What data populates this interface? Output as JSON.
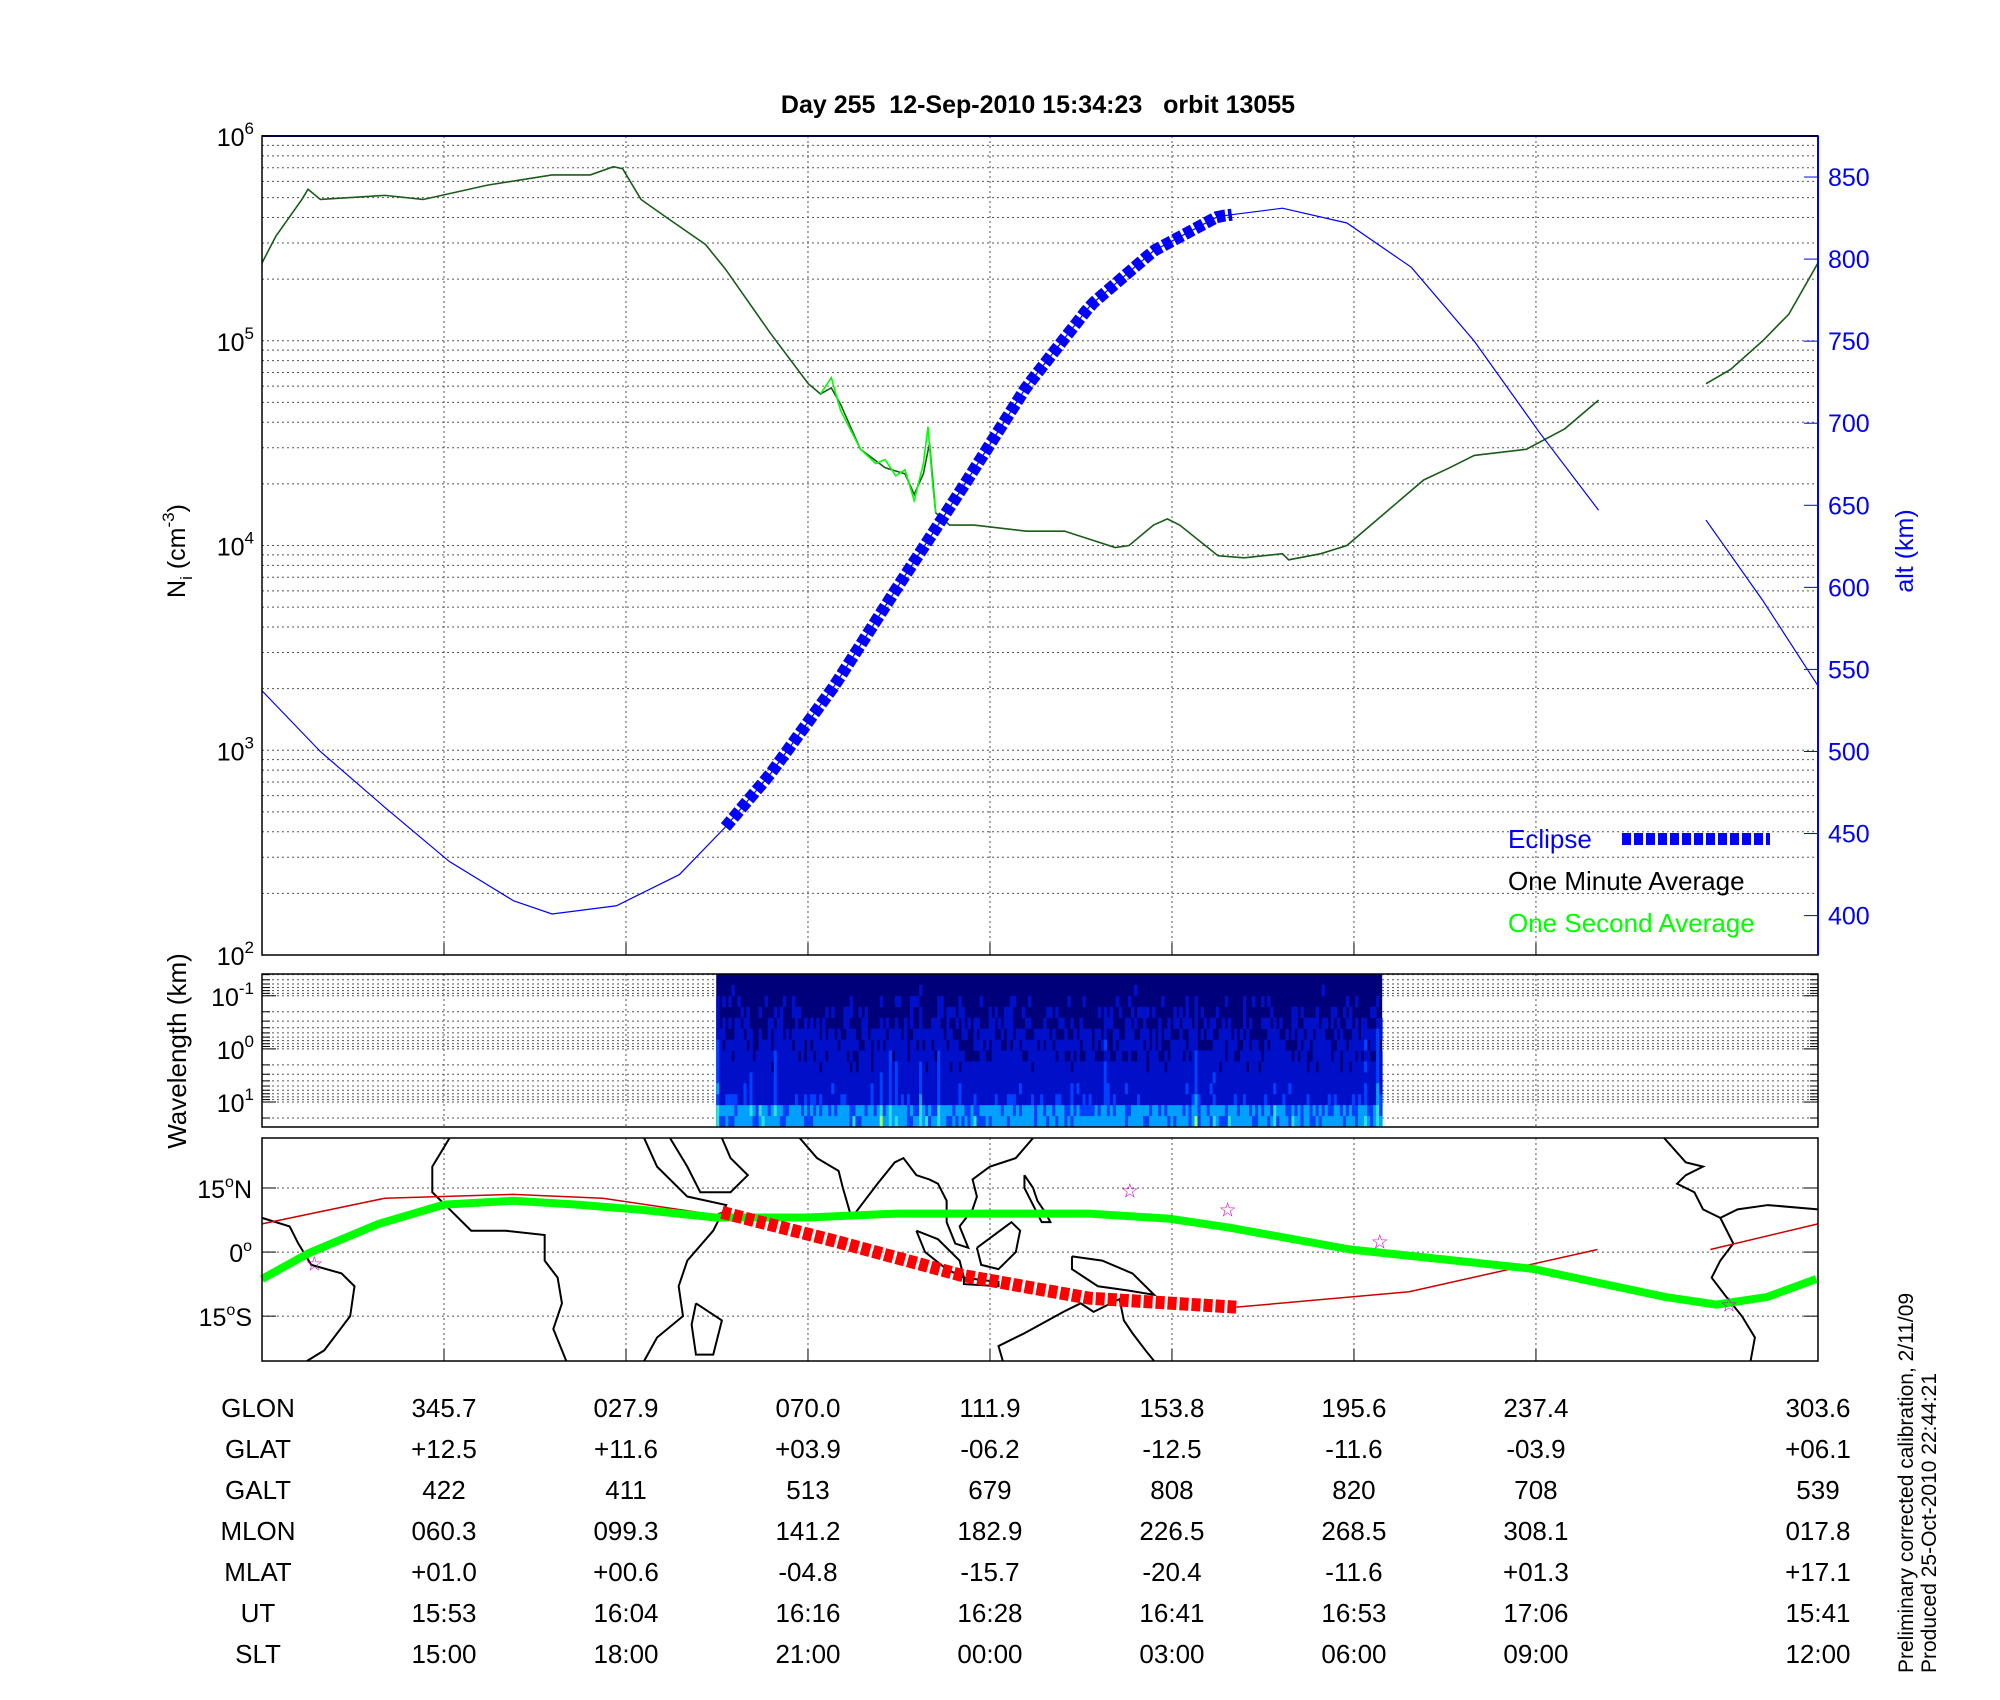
{
  "chart_data": [
    {
      "type": "line",
      "title": "Day 255  12-Sep-2010 15:34:23   orbit 13055",
      "xlabel": "",
      "x_units": "minutes after plot start",
      "xlim": [
        0,
        101.4
      ],
      "ylabel": "N",
      "ylabel_sub": "i",
      "ylabel_units": "(cm",
      "ylabel_exp": "-3",
      "ylabel_close": ")",
      "yscale": "log",
      "ylim": [
        100,
        1000000
      ],
      "yticks": [
        {
          "base": "10",
          "exp": "2",
          "log": 2
        },
        {
          "base": "10",
          "exp": "3",
          "log": 3
        },
        {
          "base": "10",
          "exp": "4",
          "log": 4
        },
        {
          "base": "10",
          "exp": "5",
          "log": 5
        },
        {
          "base": "10",
          "exp": "6",
          "log": 6
        }
      ],
      "y2label": "alt (km)",
      "y2lim": [
        376,
        875
      ],
      "y2ticks": [
        400,
        450,
        500,
        550,
        600,
        650,
        700,
        750,
        800,
        850
      ],
      "grid": true,
      "legend_placement": "bottom-right",
      "legend": [
        {
          "label": "Eclipse",
          "color": "#0000ff"
        },
        {
          "label": "One Minute Average",
          "color": "#000000"
        },
        {
          "label": "One Second Average",
          "color": "#00ff00"
        }
      ],
      "series": [
        {
          "name": "One Minute Average",
          "axis": "left",
          "color": "#1a5c1a",
          "segments": [
            [
              [
                0,
                5.38
              ],
              [
                0.9,
                5.51
              ],
              [
                2.6,
                5.69
              ],
              [
                3.0,
                5.74
              ],
              [
                3.8,
                5.69
              ],
              [
                8.0,
                5.71
              ],
              [
                10.5,
                5.69
              ],
              [
                14.7,
                5.76
              ],
              [
                18.9,
                5.81
              ],
              [
                21.4,
                5.81
              ],
              [
                22.9,
                5.85
              ],
              [
                23.5,
                5.84
              ],
              [
                24.7,
                5.69
              ],
              [
                26.4,
                5.6
              ],
              [
                28.9,
                5.47
              ],
              [
                30.2,
                5.35
              ],
              [
                33.1,
                5.04
              ],
              [
                35.6,
                4.79
              ],
              [
                36.4,
                4.74
              ],
              [
                37.1,
                4.77
              ],
              [
                37.7,
                4.69
              ],
              [
                39.0,
                4.47
              ],
              [
                40.6,
                4.38
              ],
              [
                41.9,
                4.35
              ],
              [
                42.5,
                4.25
              ],
              [
                43.1,
                4.35
              ],
              [
                43.5,
                4.5
              ],
              [
                43.9,
                4.16
              ],
              [
                44.8,
                4.1
              ],
              [
                46.4,
                4.1
              ],
              [
                49.8,
                4.07
              ],
              [
                52.3,
                4.07
              ],
              [
                55.6,
                3.99
              ],
              [
                56.5,
                4.0
              ],
              [
                58.1,
                4.1
              ],
              [
                59.0,
                4.13
              ],
              [
                59.8,
                4.1
              ],
              [
                62.3,
                3.95
              ],
              [
                64.0,
                3.94
              ],
              [
                66.5,
                3.96
              ],
              [
                66.9,
                3.93
              ],
              [
                69.0,
                3.96
              ],
              [
                70.7,
                4.0
              ],
              [
                73.2,
                4.16
              ],
              [
                75.7,
                4.32
              ],
              [
                77.4,
                4.38
              ],
              [
                79.0,
                4.44
              ],
              [
                82.4,
                4.47
              ],
              [
                84.9,
                4.57
              ],
              [
                87.1,
                4.71
              ]
            ],
            [
              [
                94.1,
                4.79
              ],
              [
                95.7,
                4.86
              ],
              [
                97.8,
                5.0
              ],
              [
                99.5,
                5.13
              ],
              [
                101.4,
                5.38
              ]
            ]
          ],
          "y_is_log10": true
        },
        {
          "name": "One Second Average",
          "axis": "left",
          "color": "#00ff00",
          "segments": [
            [
              [
                36.4,
                4.74
              ],
              [
                37.1,
                4.82
              ],
              [
                37.7,
                4.66
              ],
              [
                39.0,
                4.47
              ],
              [
                40.0,
                4.4
              ],
              [
                40.6,
                4.42
              ],
              [
                41.3,
                4.34
              ],
              [
                41.9,
                4.37
              ],
              [
                42.5,
                4.22
              ],
              [
                43.1,
                4.4
              ],
              [
                43.4,
                4.58
              ],
              [
                43.7,
                4.3
              ],
              [
                43.9,
                4.16
              ]
            ]
          ],
          "y_is_log10": true
        },
        {
          "name": "Altitude",
          "axis": "right",
          "color": "#0000ff",
          "segments": [
            [
              [
                0,
                537
              ],
              [
                3.8,
                500
              ],
              [
                8.0,
                466
              ],
              [
                12.2,
                433
              ],
              [
                16.4,
                409
              ],
              [
                18.9,
                401
              ],
              [
                23.1,
                406
              ],
              [
                27.2,
                425
              ],
              [
                30.2,
                454
              ],
              [
                33.1,
                486
              ],
              [
                37.3,
                540
              ],
              [
                41.4,
                600
              ],
              [
                45.6,
                660
              ],
              [
                49.8,
                722
              ],
              [
                54.0,
                772
              ],
              [
                58.1,
                805
              ],
              [
                62.3,
                826
              ],
              [
                66.5,
                831
              ],
              [
                70.7,
                822
              ],
              [
                74.9,
                795
              ],
              [
                79.0,
                750
              ],
              [
                83.2,
                695
              ],
              [
                87.1,
                647
              ]
            ],
            [
              [
                94.1,
                641
              ],
              [
                97.8,
                592
              ],
              [
                101.4,
                540
              ]
            ]
          ]
        }
      ],
      "eclipse": {
        "start": 30.2,
        "end": 63.6,
        "color": "#0000ff"
      }
    },
    {
      "type": "heatmap",
      "ylabel": "Wavelength (km)",
      "yscale": "log",
      "yticks": [
        {
          "base": "10",
          "exp": "-1",
          "log": -1
        },
        {
          "base": "10",
          "exp": "0",
          "log": 0
        },
        {
          "base": "10",
          "exp": "1",
          "log": 1
        }
      ],
      "ylim_log": [
        -1.41,
        1.47
      ],
      "data_xrange": [
        29.6,
        73.0
      ],
      "colormap": [
        "#00007a",
        "#0010c8",
        "#0040ff",
        "#00a0ff",
        "#30e0e0",
        "#a0ff60"
      ]
    },
    {
      "type": "line",
      "name": "ground track map",
      "lonlim": [
        303.6,
        663.6
      ],
      "latlim": [
        -25.5,
        26.7
      ],
      "lat_ticks": [
        {
          "label": "15",
          "suffix": "N",
          "lat": 15
        },
        {
          "label": "0",
          "suffix": "",
          "lat": 0
        },
        {
          "label": "15",
          "suffix": "S",
          "lat": -15
        }
      ],
      "track": {
        "color": "#00ff00",
        "points": [
          [
            303.6,
            -6.3
          ],
          [
            314.3,
            -0.3
          ],
          [
            330.6,
            6.6
          ],
          [
            345.7,
            11.1
          ],
          [
            361.7,
            12.0
          ],
          [
            376.5,
            11.1
          ],
          [
            391.3,
            9.9
          ],
          [
            408.5,
            8.1
          ],
          [
            429.8,
            8.1
          ],
          [
            450.5,
            9.0
          ],
          [
            471.5,
            9.0
          ],
          [
            495.0,
            9.0
          ],
          [
            513.6,
            7.8
          ],
          [
            527.5,
            5.7
          ],
          [
            555.4,
            0.6
          ],
          [
            597.4,
            -3.9
          ],
          [
            628.2,
            -10.5
          ],
          [
            640.1,
            -12.3
          ],
          [
            651.9,
            -10.5
          ],
          [
            663.2,
            -6.3
          ]
        ]
      },
      "magnetic_track": {
        "color": "#cc0000",
        "segments": [
          [
            [
              303.6,
              6.6
            ],
            [
              332,
              12.6
            ],
            [
              361.7,
              13.5
            ],
            [
              382.4,
              12.6
            ],
            [
              408.5,
              8.7
            ],
            [
              410,
              9.3
            ]
          ],
          [
            [
              529,
              -12.9
            ],
            [
              569,
              -9.3
            ],
            [
              612.6,
              0.6
            ]
          ],
          [
            [
              638.7,
              0.6
            ],
            [
              663.6,
              6.6
            ]
          ]
        ],
        "eclipse_points": [
          [
            410,
            9.3
          ],
          [
            435.7,
            2.7
          ],
          [
            465.3,
            -5.4
          ],
          [
            495,
            -10.8
          ],
          [
            529,
            -12.9
          ]
        ]
      },
      "stars": {
        "color": "#cc00cc",
        "points": [
          [
            315.7,
            -2.4
          ],
          [
            504.4,
            14.7
          ],
          [
            527,
            10.2
          ],
          [
            562.2,
            2.7
          ],
          [
            643,
            -12.0
          ]
        ]
      }
    }
  ],
  "table": {
    "column_minutes": [
      11.86,
      23.72,
      35.58,
      47.44,
      59.3,
      71.16,
      83.02,
      101.4
    ],
    "rows": [
      {
        "label": "GLON",
        "values": [
          "345.7",
          "027.9",
          "070.0",
          "111.9",
          "153.8",
          "195.6",
          "237.4",
          "303.6"
        ]
      },
      {
        "label": "GLAT",
        "values": [
          "+12.5",
          "+11.6",
          "+03.9",
          "-06.2",
          "-12.5",
          "-11.6",
          "-03.9",
          "+06.1"
        ]
      },
      {
        "label": "GALT",
        "values": [
          "422",
          "411",
          "513",
          "679",
          "808",
          "820",
          "708",
          "539"
        ]
      },
      {
        "label": "MLON",
        "values": [
          "060.3",
          "099.3",
          "141.2",
          "182.9",
          "226.5",
          "268.5",
          "308.1",
          "017.8"
        ]
      },
      {
        "label": "MLAT",
        "values": [
          "+01.0",
          "+00.6",
          "-04.8",
          "-15.7",
          "-20.4",
          "-11.6",
          "+01.3",
          "+17.1"
        ]
      },
      {
        "label": "UT",
        "values": [
          "15:53",
          "16:04",
          "16:16",
          "16:28",
          "16:41",
          "16:53",
          "17:06",
          "15:41"
        ]
      },
      {
        "label": "SLT",
        "values": [
          "15:00",
          "18:00",
          "21:00",
          "00:00",
          "03:00",
          "06:00",
          "09:00",
          "12:00"
        ]
      }
    ]
  },
  "footnote": {
    "line1": "Preliminary corrected calibration, 2/11/09",
    "line2": "Produced 25-Oct-2010 22:44:21"
  }
}
